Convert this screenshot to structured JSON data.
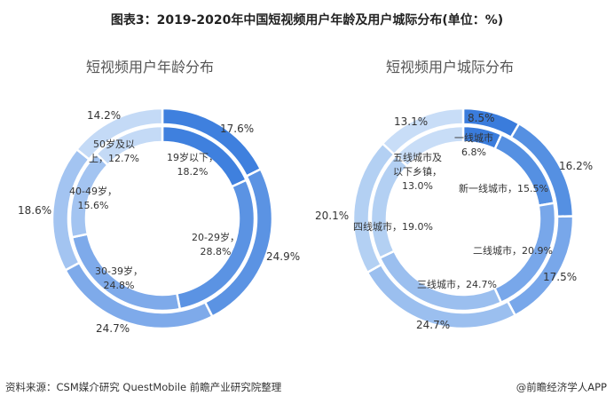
{
  "title": "图表3：2019-2020年中国短视频用户年龄及用户城际分布(单位：%)",
  "footer": {
    "source": "资料来源：CSM媒介研究 QuestMobile 前瞻产业研究院整理",
    "credit": "@前瞻经济学人APP"
  },
  "chart_data": [
    {
      "type": "pie",
      "title": "短视频用户年龄分布",
      "categories": [
        "19岁以下",
        "20-29岁",
        "30-39岁",
        "40-49岁",
        "50岁及以上"
      ],
      "series": [
        {
          "name": "outer",
          "values": [
            17.6,
            24.9,
            24.7,
            18.6,
            14.2
          ],
          "labels": [
            "17.6%",
            "24.9%",
            "24.7%",
            "18.6%",
            "14.2%"
          ]
        },
        {
          "name": "inner",
          "values": [
            18.2,
            28.8,
            24.8,
            15.6,
            12.7
          ],
          "labels": [
            "19岁以下，\n18.2%",
            "20-29岁，\n28.8%",
            "30-39岁，\n24.8%",
            "40-49岁，\n15.6%",
            "50岁及以\n上，12.7%"
          ]
        }
      ],
      "colors": [
        "#3f80de",
        "#5b93e3",
        "#7eaaea",
        "#a3c4f1",
        "#c4daf6"
      ]
    },
    {
      "type": "pie",
      "title": "短视频用户城际分布",
      "categories": [
        "一线城市",
        "新一线城市",
        "二线城市",
        "三线城市",
        "四线城市",
        "五线城市及以下乡镇"
      ],
      "series": [
        {
          "name": "outer",
          "values": [
            8.5,
            16.2,
            17.5,
            24.7,
            20.1,
            13.1
          ],
          "labels": [
            "8.5%",
            "16.2%",
            "17.5%",
            "24.7%",
            "20.1%",
            "13.1%"
          ]
        },
        {
          "name": "inner",
          "values": [
            6.8,
            15.5,
            20.9,
            24.7,
            19.0,
            13.0
          ],
          "labels": [
            "一线城市\n6.8%",
            "新一线城市，15.5%",
            "二线城市，20.9%",
            "三线城市，24.7%",
            "四线城市，19.0%",
            "五线城市及\n以下乡镇，\n13.0%"
          ]
        }
      ],
      "colors": [
        "#3a7cdc",
        "#5590e2",
        "#78a7ea",
        "#9bbfef",
        "#b3d0f3",
        "#c8ddf7"
      ]
    }
  ]
}
